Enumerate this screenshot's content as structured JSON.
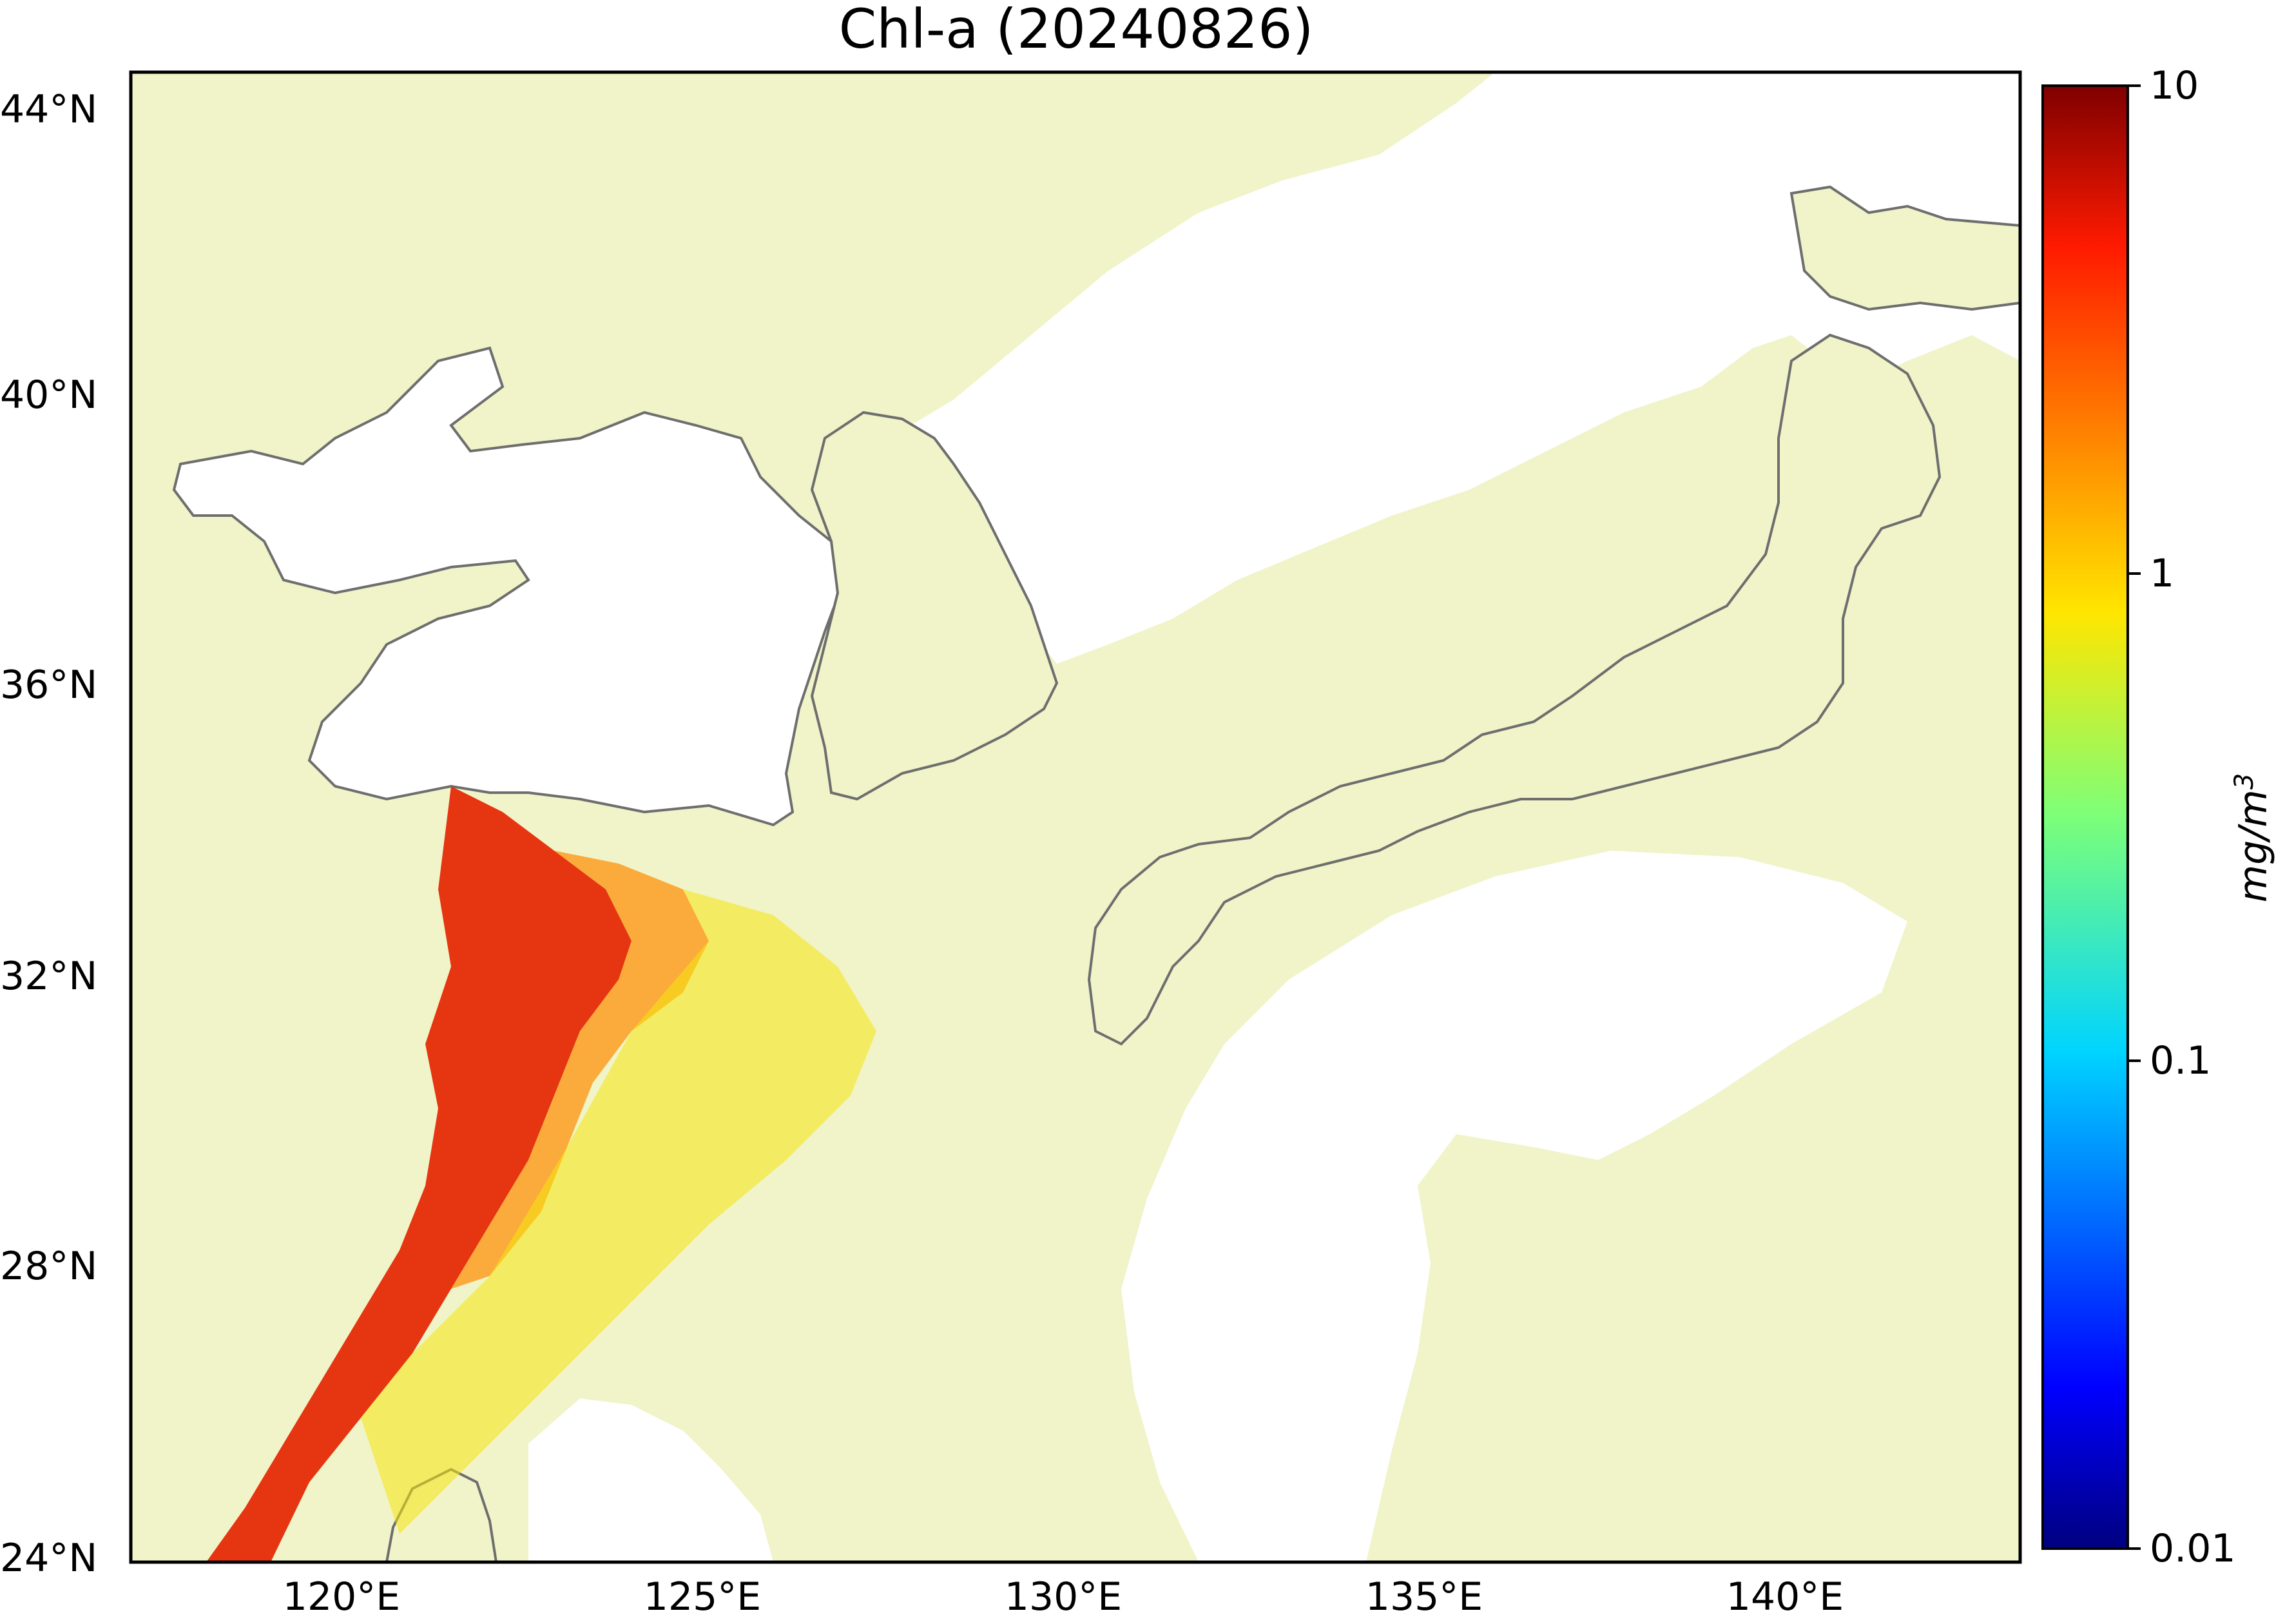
{
  "title": "Chl-a (20240826)",
  "map": {
    "lat_ticks": [
      "44°N",
      "40°N",
      "36°N",
      "32°N",
      "28°N",
      "24°N"
    ],
    "lon_ticks": [
      "120°E",
      "125°E",
      "130°E",
      "135°E",
      "140°E"
    ],
    "land_color": "#f0f4c8",
    "coastline_color": "#6e6e6e",
    "nodata_color": "#ffffff"
  },
  "colorbar": {
    "tick_labels": [
      "10",
      "1",
      "0.1",
      "0.01"
    ],
    "unit": "mg/m",
    "unit_exponent": "3",
    "scale": "log",
    "range": [
      0.01,
      10
    ],
    "colormap": "jet"
  }
}
